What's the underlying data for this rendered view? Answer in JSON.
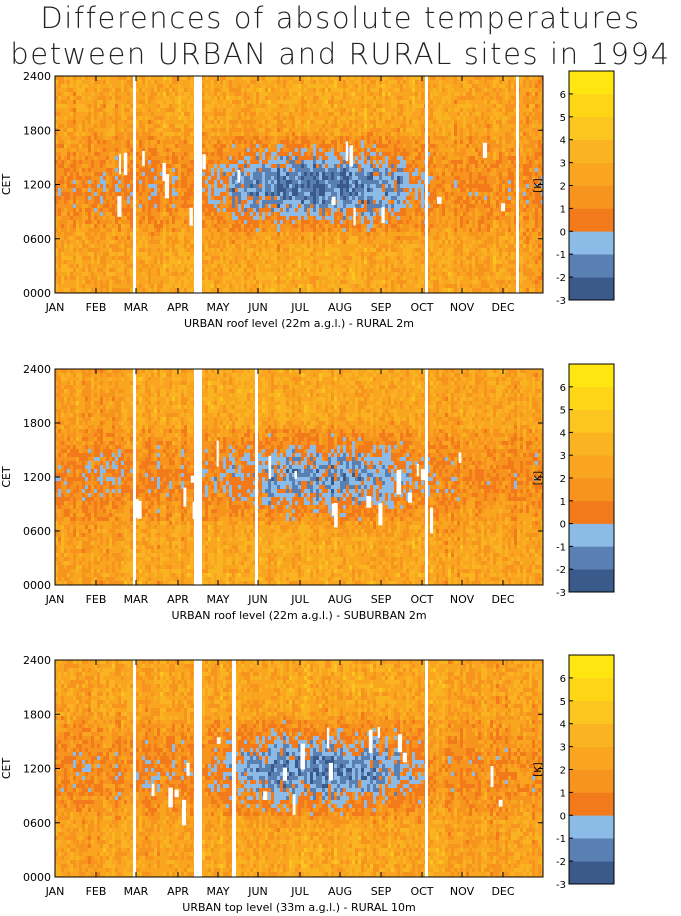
{
  "title": {
    "line1": "Differences of absolute temperatures",
    "line2": "between URBAN and RURAL sites in 1994"
  },
  "chart_data": [
    {
      "type": "heatmap",
      "xlabel": "URBAN roof level (22m a.g.l.) - RURAL 2m",
      "ylabel": "CET",
      "x_ticks": [
        "JAN",
        "FEB",
        "MAR",
        "APR",
        "MAY",
        "JUN",
        "JUL",
        "AUG",
        "SEP",
        "OCT",
        "NOV",
        "DEC"
      ],
      "y_ticks": [
        "0000",
        "0600",
        "1200",
        "1800",
        "2400"
      ],
      "colorbar_label": "[K]",
      "colorbar_ticks": [
        "-3",
        "-2",
        "-1",
        "0",
        "1",
        "2",
        "3",
        "4",
        "5",
        "6"
      ]
    },
    {
      "type": "heatmap",
      "xlabel": "URBAN roof level (22m a.g.l.) - SUBURBAN 2m",
      "ylabel": "CET",
      "x_ticks": [
        "JAN",
        "FEB",
        "MAR",
        "APR",
        "MAY",
        "JUN",
        "JUL",
        "AUG",
        "SEP",
        "OCT",
        "NOV",
        "DEC"
      ],
      "y_ticks": [
        "0000",
        "0600",
        "1200",
        "1800",
        "2400"
      ],
      "colorbar_label": "[K]",
      "colorbar_ticks": [
        "-3",
        "-2",
        "-1",
        "0",
        "1",
        "2",
        "3",
        "4",
        "5",
        "6"
      ]
    },
    {
      "type": "heatmap",
      "xlabel": "URBAN top level (33m a.g.l.) - RURAL 10m",
      "ylabel": "CET",
      "x_ticks": [
        "JAN",
        "FEB",
        "MAR",
        "APR",
        "MAY",
        "JUN",
        "JUL",
        "AUG",
        "SEP",
        "OCT",
        "NOV",
        "DEC"
      ],
      "y_ticks": [
        "0000",
        "0600",
        "1200",
        "1800",
        "2400"
      ],
      "colorbar_label": "[K]",
      "colorbar_ticks": [
        "-3",
        "-2",
        "-1",
        "0",
        "1",
        "2",
        "3",
        "4",
        "5",
        "6"
      ]
    }
  ],
  "colors": {
    "levels": [
      "#3a5a8c",
      "#5a7fb3",
      "#8bbbe6",
      "#f27a1a",
      "#f7941d",
      "#f9a51f",
      "#fbb421",
      "#fdc51f",
      "#fed617",
      "#ffe610"
    ]
  }
}
